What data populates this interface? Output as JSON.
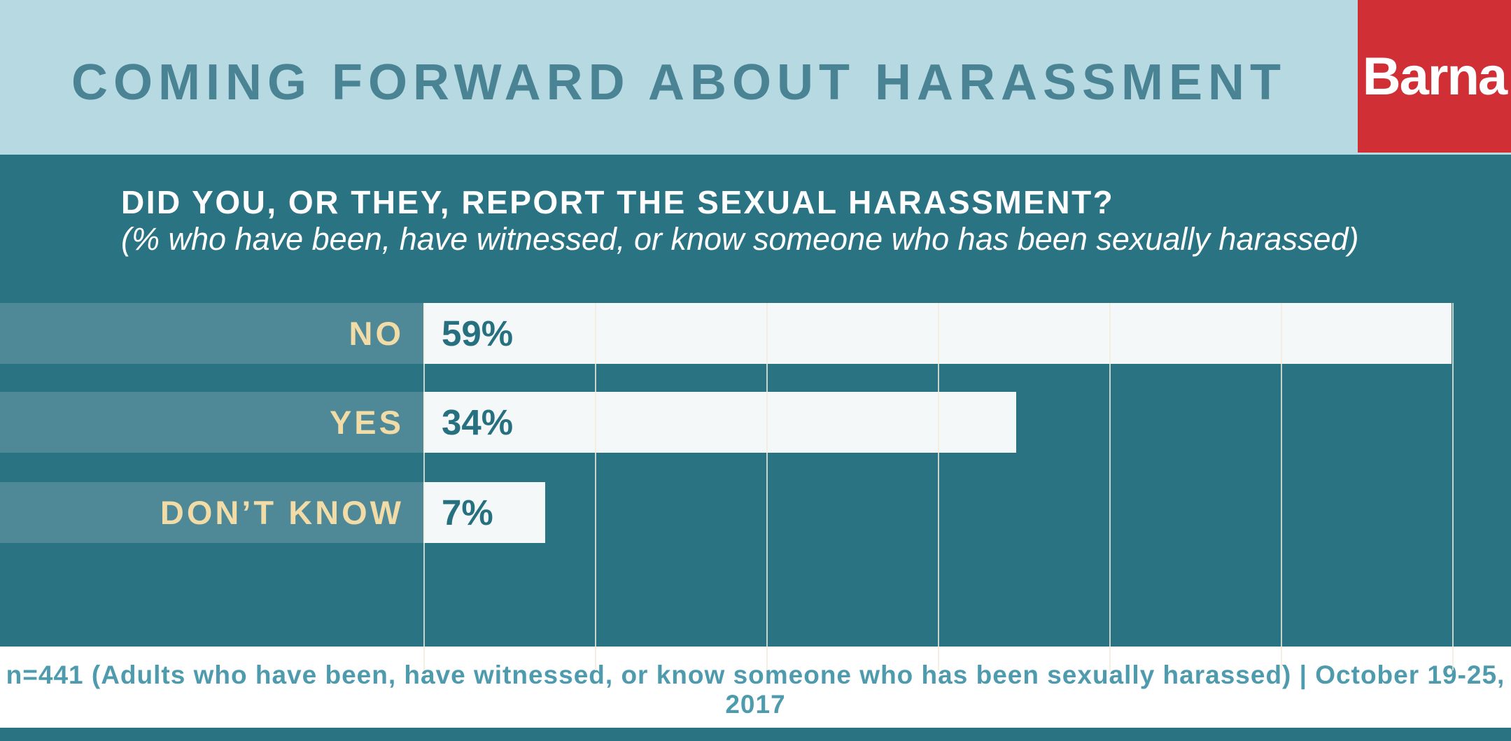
{
  "header": {
    "title": "COMING FORWARD ABOUT HARASSMENT",
    "logo_text": "Barna"
  },
  "chart_data": {
    "type": "bar",
    "orientation": "horizontal",
    "title": "DID YOU, OR THEY, REPORT THE SEXUAL HARASSMENT?",
    "subtitle": "(% who have been, have witnessed, or know someone who has been sexually harassed)",
    "categories": [
      "NO",
      "YES",
      "DON’T KNOW"
    ],
    "values": [
      59,
      34,
      7
    ],
    "value_labels": [
      "59%",
      "34%",
      "7%"
    ],
    "xlim": [
      0,
      62
    ],
    "gridline_interval_pct": 10,
    "grid": true,
    "legend": false
  },
  "footer": {
    "note": "n=441 (Adults who have been, have witnessed, or know someone who has been sexually harassed) | October 19-25, 2017"
  },
  "colors": {
    "header_bg": "#B7D9E1",
    "header_title": "#4A8494",
    "logo_red": "#D12F36",
    "chart_bg": "#2A7383",
    "label_band": "#4F8896",
    "label_text": "#F1DBA7",
    "bar_fill": "#F4F8F9",
    "value_text": "#26707F",
    "gridline": "#F0ECDA",
    "footer_text": "#4F9BAE"
  }
}
